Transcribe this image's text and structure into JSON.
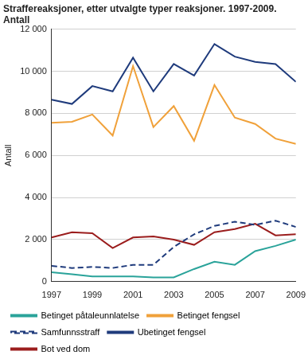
{
  "chart_data": {
    "type": "line",
    "title": "Straffereaksjoner, etter utvalgte typer reaksjoner. 1997-2009. Antall",
    "y_label": "Antall",
    "x": [
      1997,
      1998,
      1999,
      2000,
      2001,
      2002,
      2003,
      2004,
      2005,
      2006,
      2007,
      2008,
      2009
    ],
    "xlim": [
      1997,
      2009
    ],
    "xticks": [
      1997,
      1999,
      2001,
      2003,
      2005,
      2007,
      2009
    ],
    "ylim": [
      0,
      12000
    ],
    "yticks": [
      0,
      {
        "value": 2000,
        "label": "2 000"
      },
      {
        "value": 4000,
        "label": "4 000"
      },
      {
        "value": 6000,
        "label": "6 000"
      },
      {
        "value": 8000,
        "label": "8 000"
      },
      {
        "value": 10000,
        "label": "10 000"
      },
      {
        "value": 12000,
        "label": "12 000"
      }
    ],
    "grid": true,
    "legend": "bottom",
    "marker": "none",
    "series": [
      {
        "name": "Betinget påtaleunnlatelse",
        "color": "#2aa39a",
        "line_style": "solid",
        "values": [
          450,
          350,
          250,
          250,
          250,
          200,
          200,
          600,
          950,
          800,
          1450,
          1700,
          2000
        ]
      },
      {
        "name": "Betinget fengsel",
        "color": "#f0a13a",
        "line_style": "solid",
        "values": [
          7550,
          7600,
          7950,
          6950,
          10250,
          7350,
          8350,
          6700,
          9350,
          7800,
          7500,
          6800,
          6550
        ]
      },
      {
        "name": "Samfunnsstraff",
        "color": "#1f3b7c",
        "line_style": "dashed",
        "values": [
          750,
          650,
          700,
          650,
          800,
          800,
          1650,
          2250,
          2650,
          2850,
          2700,
          2900,
          2600
        ]
      },
      {
        "name": "Ubetinget fengsel",
        "color": "#1f3b7c",
        "line_style": "solid",
        "values": [
          8650,
          8450,
          9300,
          9050,
          10650,
          9050,
          10350,
          9800,
          11300,
          10700,
          10450,
          10350,
          9500
        ]
      },
      {
        "name": "Bot ved dom",
        "color": "#9b1d1d",
        "line_style": "solid",
        "values": [
          2100,
          2350,
          2300,
          1600,
          2100,
          2150,
          2000,
          1750,
          2350,
          2500,
          2750,
          2200,
          2250
        ]
      }
    ]
  }
}
